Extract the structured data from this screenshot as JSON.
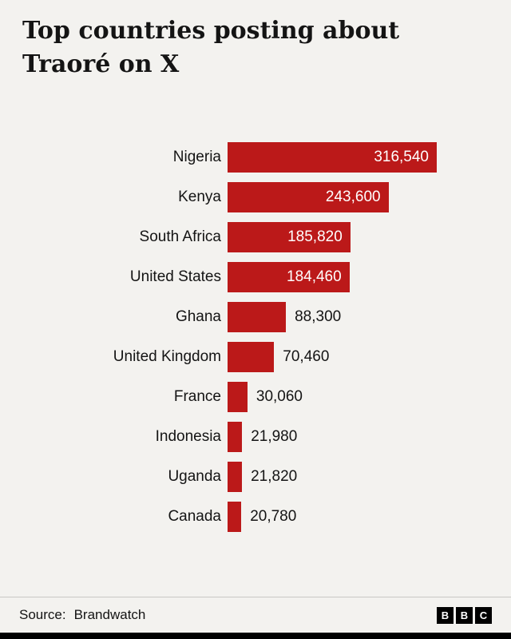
{
  "title": "Top countries posting about Traoré on X",
  "chart_data": {
    "type": "bar",
    "orientation": "horizontal",
    "title": "Top countries posting about Traoré on X",
    "categories": [
      "Nigeria",
      "Kenya",
      "South Africa",
      "United States",
      "Ghana",
      "United Kingdom",
      "France",
      "Indonesia",
      "Uganda",
      "Canada"
    ],
    "values": [
      316540,
      243600,
      185820,
      184460,
      88300,
      70460,
      30060,
      21980,
      21820,
      20780
    ],
    "value_labels": [
      "316,540",
      "243,600",
      "185,820",
      "184,460",
      "88,300",
      "70,460",
      "30,060",
      "21,980",
      "21,820",
      "20,780"
    ],
    "xlim": [
      0,
      320000
    ],
    "bar_color": "#bb1919",
    "background_color": "#f3f2ef",
    "grid": false,
    "legend": "none",
    "value_label_placement": "inside-for-long-bars, outside-for-short-bars"
  },
  "footer": {
    "source_label": "Source:",
    "source_value": "Brandwatch",
    "logo_letters": [
      "B",
      "B",
      "C"
    ]
  }
}
